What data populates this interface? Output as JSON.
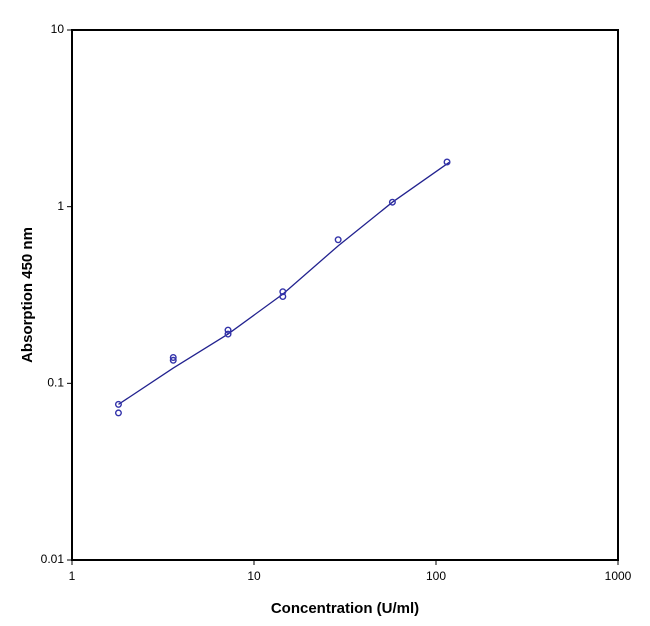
{
  "chart_data": {
    "type": "scatter",
    "x_label": "Concentration (U/ml)",
    "y_label": "Absorption 450 nm",
    "x": [
      1.8,
      1.8,
      3.6,
      3.6,
      7.2,
      7.2,
      14.4,
      14.4,
      29,
      57.6,
      115
    ],
    "values": [
      0.076,
      0.068,
      0.14,
      0.135,
      0.2,
      0.19,
      0.33,
      0.31,
      0.65,
      1.06,
      1.79
    ],
    "color": "#3333aa",
    "curve": {
      "x": [
        1.8,
        3.6,
        7.2,
        14.4,
        29,
        57.6,
        118
      ],
      "values": [
        0.076,
        0.122,
        0.19,
        0.32,
        0.6,
        1.06,
        1.78
      ],
      "color": "#22228f"
    },
    "xlim": [
      1,
      1000
    ],
    "ylim": [
      0.01,
      10
    ],
    "xticks": [
      1,
      10,
      100,
      1000
    ],
    "yticks": [
      0.01,
      0.1,
      1,
      10
    ],
    "log_x": true,
    "log_y": true,
    "grid": false
  }
}
